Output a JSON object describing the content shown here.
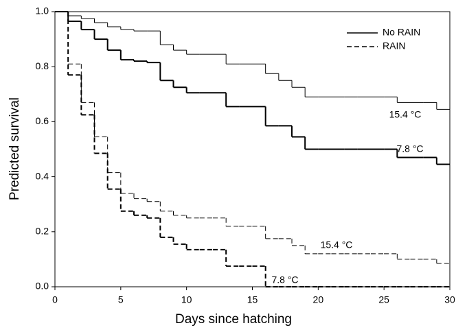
{
  "chart_data": {
    "type": "step",
    "xlabel": "Days since hatching",
    "ylabel": "Predicted survival",
    "x": [
      0,
      1,
      2,
      3,
      4,
      5,
      6,
      7,
      8,
      9,
      10,
      11,
      12,
      13,
      14,
      15,
      16,
      17,
      18,
      19,
      20,
      21,
      22,
      23,
      24,
      25,
      26,
      27,
      28,
      29,
      30
    ],
    "series": [
      {
        "name": "No RAIN",
        "label": "15.4 °C",
        "color": "#000000",
        "style": "solid",
        "line_width": 1,
        "values": [
          1.0,
          0.985,
          0.975,
          0.96,
          0.945,
          0.935,
          0.93,
          0.93,
          0.88,
          0.86,
          0.845,
          0.845,
          0.845,
          0.81,
          0.81,
          0.81,
          0.775,
          0.75,
          0.725,
          0.69,
          0.69,
          0.69,
          0.69,
          0.69,
          0.69,
          0.69,
          0.67,
          0.67,
          0.67,
          0.645,
          0.645
        ]
      },
      {
        "name": "No RAIN",
        "label": "7.8 °C",
        "color": "#000000",
        "style": "solid",
        "line_width": 2,
        "values": [
          1.0,
          0.965,
          0.935,
          0.9,
          0.86,
          0.825,
          0.82,
          0.815,
          0.75,
          0.725,
          0.705,
          0.705,
          0.705,
          0.655,
          0.655,
          0.655,
          0.585,
          0.585,
          0.545,
          0.5,
          0.5,
          0.5,
          0.5,
          0.5,
          0.5,
          0.5,
          0.47,
          0.47,
          0.47,
          0.445,
          0.445
        ]
      },
      {
        "name": "RAIN",
        "label": "15.4 °C",
        "color": "#000000",
        "style": "dashed",
        "line_width": 1,
        "values": [
          1.0,
          0.81,
          0.67,
          0.545,
          0.415,
          0.34,
          0.32,
          0.31,
          0.275,
          0.26,
          0.25,
          0.25,
          0.25,
          0.22,
          0.22,
          0.22,
          0.175,
          0.175,
          0.15,
          0.12,
          0.12,
          0.12,
          0.12,
          0.12,
          0.12,
          0.12,
          0.1,
          0.1,
          0.1,
          0.085,
          0.085
        ]
      },
      {
        "name": "RAIN",
        "label": "7.8 °C",
        "color": "#000000",
        "style": "dashed",
        "line_width": 2,
        "values": [
          1.0,
          0.77,
          0.625,
          0.485,
          0.355,
          0.275,
          0.26,
          0.25,
          0.18,
          0.155,
          0.135,
          0.135,
          0.135,
          0.075,
          0.075,
          0.075,
          0,
          0,
          0,
          0,
          0,
          0,
          0,
          0,
          0,
          0,
          0,
          0,
          0,
          0,
          0
        ]
      }
    ],
    "xlim": [
      0,
      30
    ],
    "ylim": [
      0,
      1
    ],
    "xticks": [
      0,
      5,
      10,
      15,
      20,
      25,
      30
    ],
    "yticks": [
      {
        "value": 0,
        "label": "0.0"
      },
      {
        "value": 0.2,
        "label": "0.2"
      },
      {
        "value": 0.4,
        "label": "0.4"
      },
      {
        "value": 0.6,
        "label": "0.6"
      },
      {
        "value": 0.8,
        "label": "0.8"
      },
      {
        "value": 1,
        "label": "1.0"
      }
    ],
    "legend": "upper right"
  }
}
